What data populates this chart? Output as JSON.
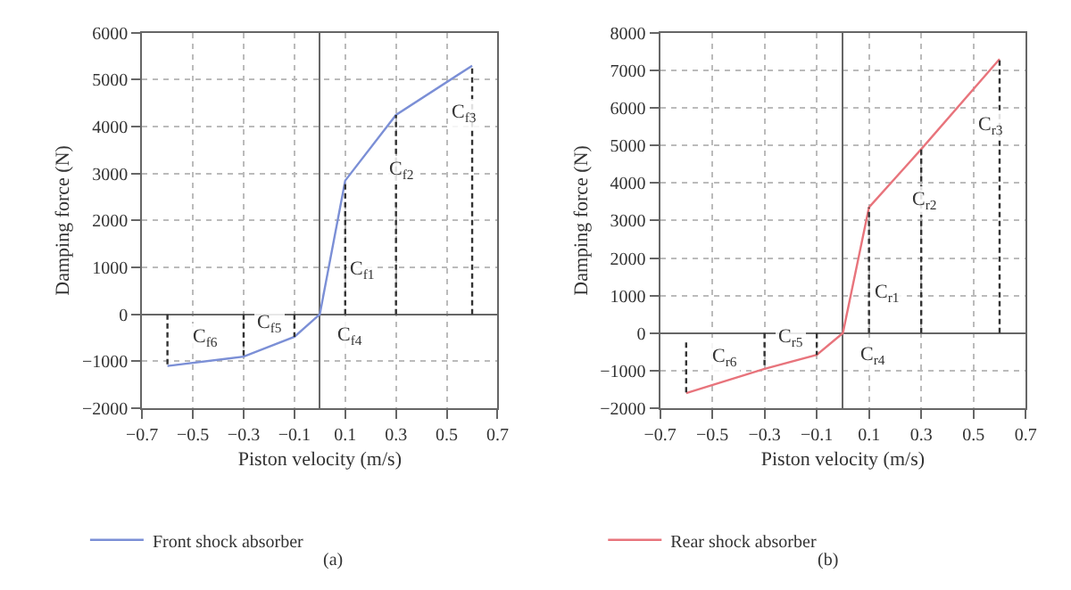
{
  "chart_data": [
    {
      "type": "line",
      "xlabel": "Piston velocity (m/s)",
      "ylabel": "Damping force (N)",
      "x": [
        -0.6,
        -0.3,
        -0.1,
        0,
        0.1,
        0.3,
        0.6
      ],
      "series": [
        {
          "name": "Front shock absorber",
          "color": "#7b8fd6",
          "values": [
            -1100,
            -900,
            -480,
            0,
            2850,
            4250,
            5300
          ]
        },
        {
          "type": "line",
          "color": "#333333",
          "line_style": "dashed",
          "x": [
            -0.6,
            -0.6
          ],
          "values": [
            0,
            -1100
          ]
        },
        {
          "type": "line",
          "color": "#333333",
          "line_style": "dashed",
          "x": [
            -0.3,
            -0.3
          ],
          "values": [
            0,
            -900
          ]
        },
        {
          "type": "line",
          "color": "#333333",
          "line_style": "dashed",
          "x": [
            -0.1,
            -0.1
          ],
          "values": [
            0,
            -480
          ]
        },
        {
          "type": "line",
          "color": "#333333",
          "line_style": "dashed",
          "x": [
            0.1,
            0.1
          ],
          "values": [
            0,
            2850
          ]
        },
        {
          "type": "line",
          "color": "#333333",
          "line_style": "dashed",
          "x": [
            0.3,
            0.3
          ],
          "values": [
            0,
            4250
          ]
        },
        {
          "type": "line",
          "color": "#333333",
          "line_style": "dashed",
          "x": [
            0.6,
            0.6
          ],
          "values": [
            0,
            5300
          ]
        }
      ],
      "xlim": [
        -0.7,
        0.7
      ],
      "xticks": [
        -0.7,
        -0.5,
        -0.3,
        -0.1,
        0.1,
        0.3,
        0.5,
        0.7
      ],
      "ylim": [
        -2000,
        6000
      ],
      "yticks": [
        -2000,
        -1000,
        0,
        1000,
        2000,
        3000,
        4000,
        5000,
        6000
      ],
      "grid": true,
      "legend": "bottom",
      "line_style": "solid",
      "marker": "none",
      "annotations": [
        {
          "text": "C$_{f1}$",
          "x": 0.05,
          "y": 1425
        },
        {
          "text": "C$_{f2}$",
          "x": 0.2,
          "y": 3550
        },
        {
          "text": "C$_{f3}$",
          "x": 0.45,
          "y": 4775
        },
        {
          "text": "C$_{f4}$",
          "x": 0,
          "y": 0
        },
        {
          "text": "C$_{f5}$",
          "x": -0.2,
          "y": -690
        },
        {
          "text": "C$_{f6}$",
          "x": -0.45,
          "y": -1000
        },
        "(a)"
      ]
    },
    {
      "type": "line",
      "xlabel": "Piston velocity (m/s)",
      "ylabel": "Damping force (N)",
      "x": [
        -0.6,
        -0.3,
        -0.1,
        0,
        0.1,
        0.3,
        0.6
      ],
      "series": [
        {
          "name": "Rear shock absorber",
          "color": "#e8747c",
          "values": [
            -1600,
            -950,
            -580,
            0,
            3350,
            4900,
            7300
          ]
        },
        {
          "type": "line",
          "color": "#333333",
          "line_style": "dashed",
          "x": [
            -0.6,
            -0.6
          ],
          "values": [
            -250,
            -1600
          ]
        },
        {
          "type": "line",
          "color": "#333333",
          "line_style": "dashed",
          "x": [
            -0.3,
            -0.3
          ],
          "values": [
            0,
            -950
          ]
        },
        {
          "type": "line",
          "color": "#333333",
          "line_style": "dashed",
          "x": [
            -0.1,
            -0.1
          ],
          "values": [
            0,
            -580
          ]
        },
        {
          "type": "line",
          "color": "#333333",
          "line_style": "dashed",
          "x": [
            0.1,
            0.1
          ],
          "values": [
            0,
            3350
          ]
        },
        {
          "type": "line",
          "color": "#333333",
          "line_style": "dashed",
          "x": [
            0.3,
            0.3
          ],
          "values": [
            0,
            4900
          ]
        },
        {
          "type": "line",
          "color": "#333333",
          "line_style": "dashed",
          "x": [
            0.6,
            0.6
          ],
          "values": [
            0,
            7300
          ]
        }
      ],
      "xlim": [
        -0.7,
        0.7
      ],
      "xticks": [
        -0.7,
        -0.5,
        -0.3,
        -0.1,
        0.1,
        0.3,
        0.5,
        0.7
      ],
      "ylim": [
        -2000,
        8000
      ],
      "yticks": [
        -2000,
        -1000,
        0,
        1000,
        2000,
        3000,
        4000,
        5000,
        6000,
        7000,
        8000
      ],
      "grid": true,
      "legend": "bottom",
      "line_style": "solid",
      "marker": "none",
      "annotations": [
        {
          "text": "C$_{r1}$",
          "x": 0.05,
          "y": 1675
        },
        {
          "text": "C$_{r2}$",
          "x": 0.2,
          "y": 4125
        },
        {
          "text": "C$_{r3}$",
          "x": 0.45,
          "y": 6100
        },
        {
          "text": "C$_{r4}$",
          "x": 0,
          "y": 0
        },
        {
          "text": "C$_{r5}$",
          "x": -0.2,
          "y": -765
        },
        {
          "text": "C$_{r6}$",
          "x": -0.45,
          "y": -1275
        },
        "(b)"
      ]
    }
  ]
}
